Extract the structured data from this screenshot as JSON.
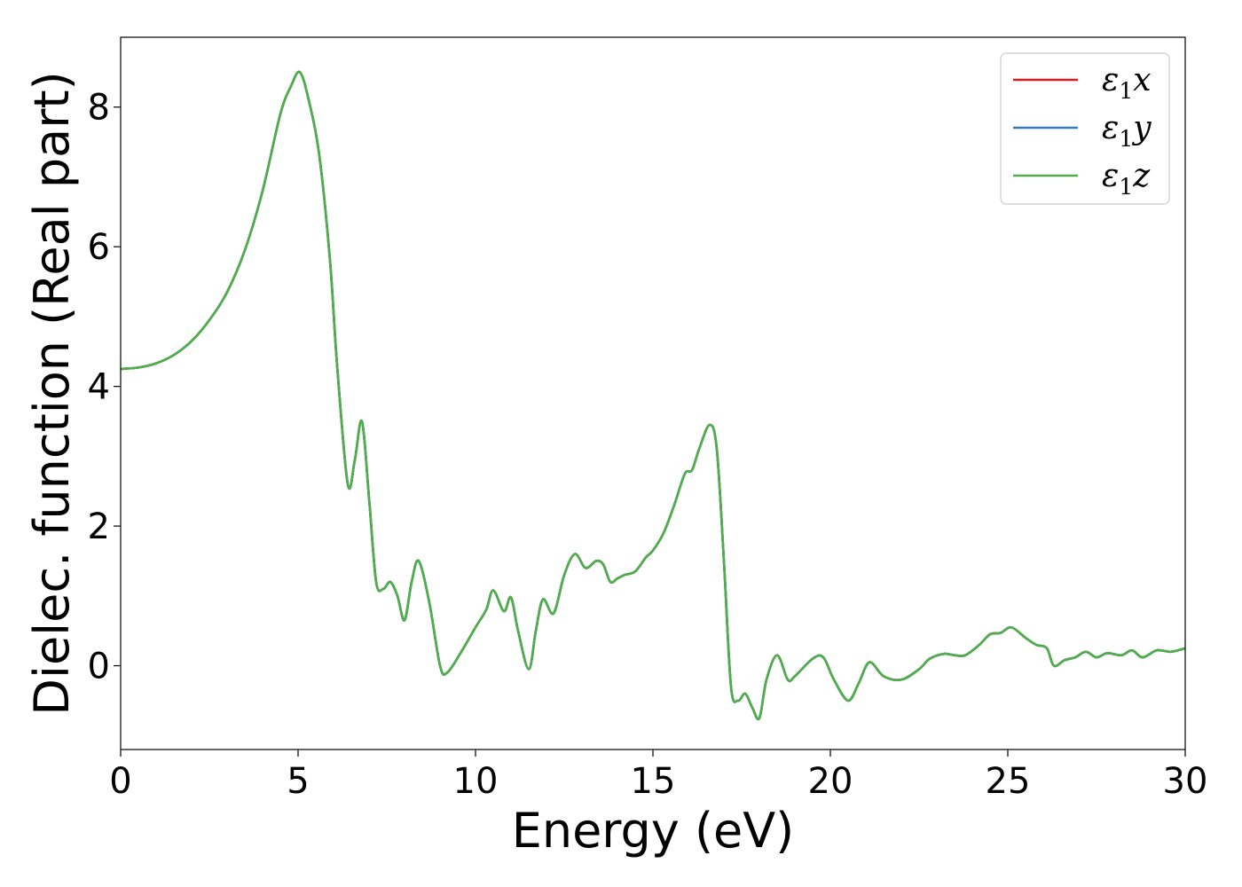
{
  "chart_data": {
    "type": "line",
    "title": "",
    "xlabel": "Energy (eV)",
    "ylabel": "Dielec. function (Real part)",
    "xlim": [
      0,
      30
    ],
    "ylim": [
      -1.2,
      9.0
    ],
    "xticks": [
      0,
      5,
      10,
      15,
      20,
      25,
      30
    ],
    "yticks": [
      0,
      2,
      4,
      6,
      8
    ],
    "xtick_labels": [
      "0",
      "5",
      "10",
      "15",
      "20",
      "25",
      "30"
    ],
    "ytick_labels": [
      "0",
      "2",
      "4",
      "6",
      "8"
    ],
    "grid": false,
    "legend_position": "top-right",
    "x": [
      0.0,
      0.5,
      1.0,
      1.5,
      2.0,
      2.5,
      3.0,
      3.5,
      4.0,
      4.5,
      4.8,
      5.05,
      5.3,
      5.6,
      5.9,
      6.1,
      6.4,
      6.6,
      6.8,
      7.0,
      7.2,
      7.4,
      7.6,
      7.8,
      8.0,
      8.2,
      8.4,
      8.7,
      9.0,
      9.2,
      9.6,
      10.0,
      10.3,
      10.5,
      10.8,
      11.0,
      11.2,
      11.5,
      11.7,
      11.9,
      12.2,
      12.5,
      12.8,
      13.1,
      13.4,
      13.6,
      13.8,
      14.0,
      14.2,
      14.5,
      14.8,
      15.0,
      15.3,
      15.6,
      15.9,
      16.1,
      16.3,
      16.6,
      16.8,
      17.0,
      17.2,
      17.4,
      17.6,
      17.8,
      18.0,
      18.2,
      18.5,
      18.8,
      19.0,
      19.5,
      19.8,
      20.1,
      20.5,
      20.8,
      21.1,
      21.5,
      22.0,
      22.5,
      22.8,
      23.2,
      23.5,
      23.8,
      24.2,
      24.5,
      24.8,
      25.1,
      25.5,
      25.8,
      26.1,
      26.3,
      26.6,
      26.9,
      27.2,
      27.5,
      27.8,
      28.2,
      28.5,
      28.8,
      29.2,
      29.6,
      30.0
    ],
    "series": [
      {
        "name": "ε1x",
        "color": "#e41a1c",
        "values": [
          4.25,
          4.27,
          4.33,
          4.45,
          4.65,
          4.95,
          5.35,
          5.95,
          6.8,
          7.9,
          8.3,
          8.5,
          8.1,
          7.3,
          5.8,
          4.3,
          2.6,
          2.95,
          3.5,
          2.4,
          1.2,
          1.1,
          1.2,
          1.0,
          0.65,
          1.2,
          1.5,
          0.9,
          0.0,
          -0.1,
          0.2,
          0.55,
          0.8,
          1.08,
          0.78,
          0.98,
          0.5,
          -0.05,
          0.5,
          0.95,
          0.75,
          1.3,
          1.6,
          1.4,
          1.5,
          1.45,
          1.2,
          1.25,
          1.3,
          1.35,
          1.55,
          1.65,
          1.9,
          2.3,
          2.75,
          2.8,
          3.1,
          3.45,
          3.1,
          1.5,
          -0.3,
          -0.5,
          -0.4,
          -0.6,
          -0.75,
          -0.2,
          0.15,
          -0.2,
          -0.15,
          0.1,
          0.12,
          -0.2,
          -0.5,
          -0.25,
          0.05,
          -0.15,
          -0.2,
          -0.05,
          0.1,
          0.17,
          0.15,
          0.15,
          0.3,
          0.45,
          0.47,
          0.55,
          0.4,
          0.3,
          0.25,
          0.0,
          0.08,
          0.12,
          0.2,
          0.12,
          0.18,
          0.15,
          0.22,
          0.12,
          0.22,
          0.2,
          0.25
        ]
      },
      {
        "name": "ε1y",
        "color": "#377eb8",
        "values": [
          4.25,
          4.27,
          4.33,
          4.45,
          4.65,
          4.95,
          5.35,
          5.95,
          6.8,
          7.9,
          8.3,
          8.5,
          8.1,
          7.3,
          5.8,
          4.3,
          2.6,
          2.95,
          3.5,
          2.4,
          1.2,
          1.1,
          1.2,
          1.0,
          0.65,
          1.2,
          1.5,
          0.9,
          0.0,
          -0.1,
          0.2,
          0.55,
          0.8,
          1.08,
          0.78,
          0.98,
          0.5,
          -0.05,
          0.5,
          0.95,
          0.75,
          1.3,
          1.6,
          1.4,
          1.5,
          1.45,
          1.2,
          1.25,
          1.3,
          1.35,
          1.55,
          1.65,
          1.9,
          2.3,
          2.75,
          2.8,
          3.1,
          3.45,
          3.1,
          1.5,
          -0.3,
          -0.5,
          -0.4,
          -0.6,
          -0.75,
          -0.2,
          0.15,
          -0.2,
          -0.15,
          0.1,
          0.12,
          -0.2,
          -0.5,
          -0.25,
          0.05,
          -0.15,
          -0.2,
          -0.05,
          0.1,
          0.17,
          0.15,
          0.15,
          0.3,
          0.45,
          0.47,
          0.55,
          0.4,
          0.3,
          0.25,
          0.0,
          0.08,
          0.12,
          0.2,
          0.12,
          0.18,
          0.15,
          0.22,
          0.12,
          0.22,
          0.2,
          0.25
        ]
      },
      {
        "name": "ε1z",
        "color": "#4daf4a",
        "values": [
          4.25,
          4.27,
          4.33,
          4.45,
          4.65,
          4.95,
          5.35,
          5.95,
          6.8,
          7.9,
          8.3,
          8.5,
          8.1,
          7.3,
          5.8,
          4.3,
          2.6,
          2.95,
          3.5,
          2.4,
          1.2,
          1.1,
          1.2,
          1.0,
          0.65,
          1.2,
          1.5,
          0.9,
          0.0,
          -0.1,
          0.2,
          0.55,
          0.8,
          1.08,
          0.78,
          0.98,
          0.5,
          -0.05,
          0.5,
          0.95,
          0.75,
          1.3,
          1.6,
          1.4,
          1.5,
          1.45,
          1.2,
          1.25,
          1.3,
          1.35,
          1.55,
          1.65,
          1.9,
          2.3,
          2.75,
          2.8,
          3.1,
          3.45,
          3.1,
          1.5,
          -0.3,
          -0.5,
          -0.4,
          -0.6,
          -0.75,
          -0.2,
          0.15,
          -0.2,
          -0.15,
          0.1,
          0.12,
          -0.2,
          -0.5,
          -0.25,
          0.05,
          -0.15,
          -0.2,
          -0.05,
          0.1,
          0.17,
          0.15,
          0.15,
          0.3,
          0.45,
          0.47,
          0.55,
          0.4,
          0.3,
          0.25,
          0.0,
          0.08,
          0.12,
          0.2,
          0.12,
          0.18,
          0.15,
          0.22,
          0.12,
          0.22,
          0.2,
          0.25
        ]
      }
    ],
    "legend": [
      {
        "symbol": "ε",
        "sub": "1",
        "var": "x"
      },
      {
        "symbol": "ε",
        "sub": "1",
        "var": "y"
      },
      {
        "symbol": "ε",
        "sub": "1",
        "var": "z"
      }
    ]
  }
}
